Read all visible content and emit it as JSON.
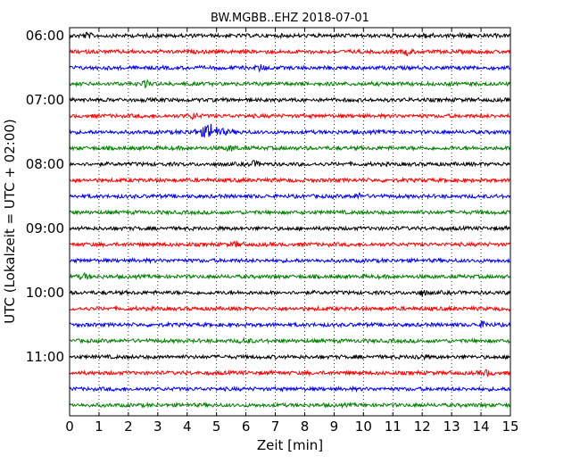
{
  "chart_data": {
    "type": "line",
    "title": "BW.MGBB..EHZ 2018-07-01",
    "xlabel": "Zeit  [min]",
    "ylabel": "UTC (Lokalzeit = UTC + 02:00)",
    "xlim": [
      0,
      15
    ],
    "xticks": [
      "0",
      "1",
      "2",
      "3",
      "4",
      "5",
      "6",
      "7",
      "8",
      "9",
      "10",
      "11",
      "12",
      "13",
      "14",
      "15"
    ],
    "yticks": [
      "06:00",
      "07:00",
      "08:00",
      "09:00",
      "10:00",
      "11:00"
    ],
    "grid_x": true,
    "trace_colors": [
      "#000000",
      "#ff0000",
      "#0000ff",
      "#008000"
    ],
    "traces": [
      {
        "start": "06:00",
        "events": [
          0.6,
          12.2,
          13.5
        ]
      },
      {
        "start": "06:15",
        "events": [
          11.5
        ]
      },
      {
        "start": "06:30",
        "events": [
          6.5
        ]
      },
      {
        "start": "06:45",
        "events": [
          2.6
        ]
      },
      {
        "start": "07:00",
        "events": []
      },
      {
        "start": "07:15",
        "events": [
          4.2
        ]
      },
      {
        "start": "07:30",
        "events": [
          4.8
        ]
      },
      {
        "start": "07:45",
        "events": [
          5.5
        ]
      },
      {
        "start": "08:00",
        "events": [
          6.3
        ]
      },
      {
        "start": "08:15",
        "events": []
      },
      {
        "start": "08:30",
        "events": [
          9.8
        ]
      },
      {
        "start": "08:45",
        "events": []
      },
      {
        "start": "09:00",
        "events": []
      },
      {
        "start": "09:15",
        "events": [
          5.7
        ]
      },
      {
        "start": "09:30",
        "events": []
      },
      {
        "start": "09:45",
        "events": [
          0.5
        ]
      },
      {
        "start": "10:00",
        "events": [
          12.0
        ]
      },
      {
        "start": "10:15",
        "events": []
      },
      {
        "start": "10:30",
        "events": [
          14.1
        ]
      },
      {
        "start": "10:45",
        "events": [
          6.0
        ]
      },
      {
        "start": "11:00",
        "events": [
          11.9
        ]
      },
      {
        "start": "11:15",
        "events": [
          14.2
        ]
      },
      {
        "start": "11:30",
        "events": []
      },
      {
        "start": "11:45",
        "events": []
      }
    ]
  }
}
